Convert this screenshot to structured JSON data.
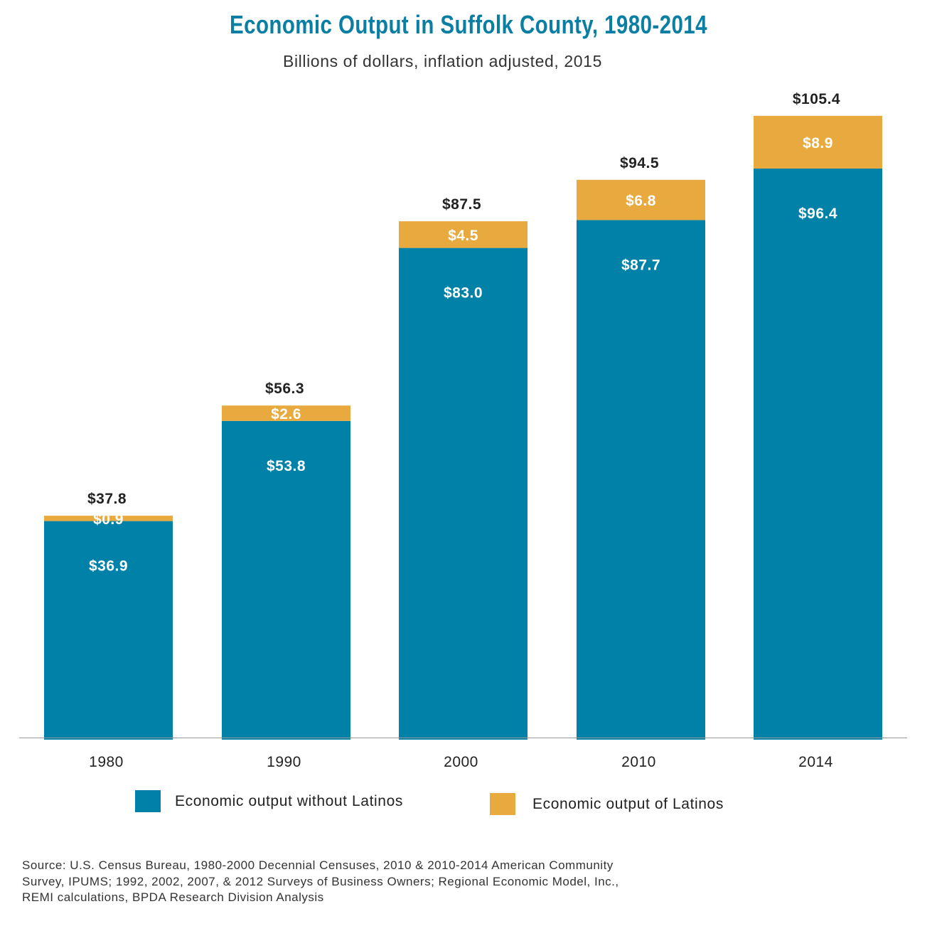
{
  "chart_data": {
    "type": "bar",
    "stacked": true,
    "title": "Economic Output in Suffolk County, 1980-2014",
    "subtitle": "Billions of dollars, inflation adjusted, 2015",
    "xlabel": "",
    "ylabel": "",
    "ylim": [
      0,
      105.4
    ],
    "grid": false,
    "categories": [
      "1980",
      "1990",
      "2000",
      "2010",
      "2014"
    ],
    "series": [
      {
        "name": "Economic output without Latinos",
        "color": "#0082A8",
        "values": [
          36.9,
          53.8,
          83.0,
          87.7,
          96.4
        ],
        "labels": [
          "$36.9",
          "$53.8",
          "$83.0",
          "$87.7",
          "$96.4"
        ]
      },
      {
        "name": "Economic output of Latinos",
        "color": "#E8AA3E",
        "values": [
          0.9,
          2.6,
          4.5,
          6.8,
          8.9
        ],
        "labels": [
          "$0.9",
          "$2.6",
          "$4.5",
          "$6.8",
          "$8.9"
        ]
      }
    ],
    "totals": [
      37.8,
      56.3,
      87.5,
      94.5,
      105.4
    ],
    "total_labels": [
      "$37.8",
      "$56.3",
      "$87.5",
      "$94.5",
      "$105.4"
    ],
    "legend_position": "bottom",
    "source_lines": [
      "Source: U.S. Census Bureau, 1980-2000 Decennial Censuses, 2010 & 2010-2014 American Community",
      "Survey, IPUMS; 1992, 2002, 2007, & 2012 Surveys of Business Owners; Regional Economic Model, Inc.,",
      "REMI calculations, BPDA Research Division Analysis"
    ]
  }
}
